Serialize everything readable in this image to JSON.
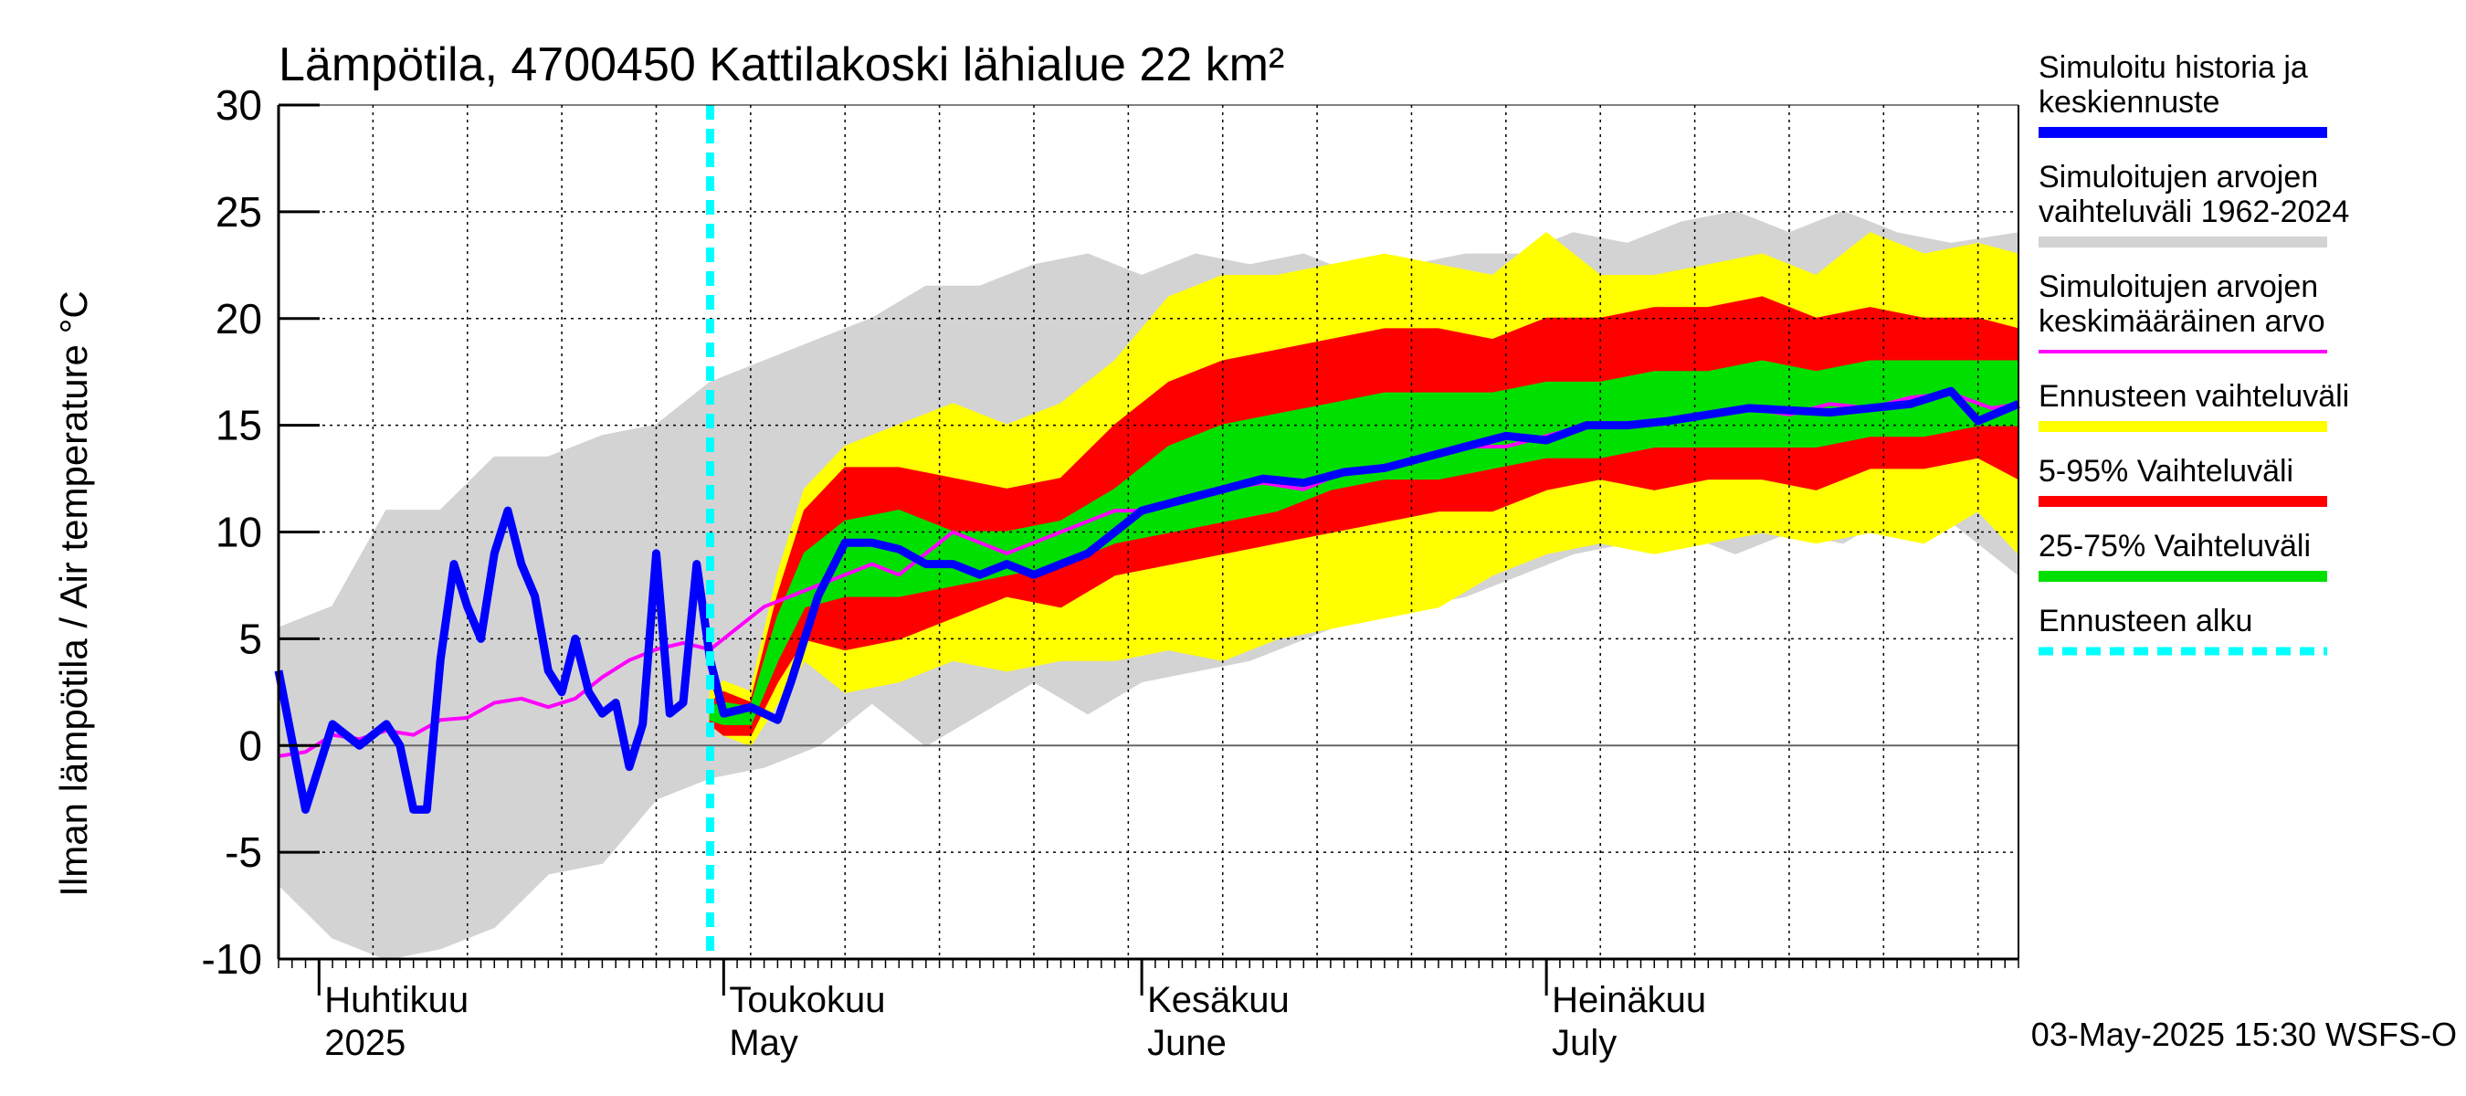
{
  "title": "Lämpötila, 4700450 Kattilakoski lähialue 22 km²",
  "y_axis_label": "Ilman lämpötila / Air temperature   °C",
  "footer": "03-May-2025 15:30 WSFS-O",
  "colors": {
    "history": "#0000ff",
    "range_all": "#d3d3d3",
    "mean": "#ff00ff",
    "forecast_range": "#ffff00",
    "p5_95": "#ff0000",
    "p25_75": "#00e000",
    "forecast_start": "#00ffff",
    "grid": "#000000"
  },
  "legend": [
    {
      "label": "Simuloitu historia ja\nkeskiennuste",
      "key": "history",
      "style": "line"
    },
    {
      "label": "Simuloitujen arvojen\nvaihteluväli 1962-2024",
      "key": "range_all",
      "style": "line"
    },
    {
      "label": "Simuloitujen arvojen\nkeskimääräinen arvo",
      "key": "mean",
      "style": "thin"
    },
    {
      "label": "Ennusteen vaihteluväli",
      "key": "forecast_range",
      "style": "line"
    },
    {
      "label": "5-95% Vaihteluväli",
      "key": "p5_95",
      "style": "line"
    },
    {
      "label": "25-75% Vaihteluväli",
      "key": "p25_75",
      "style": "line"
    },
    {
      "label": "Ennusteen alku",
      "key": "forecast_start",
      "style": "dashed"
    }
  ],
  "chart_data": {
    "type": "area",
    "title": "Lämpötila, 4700450 Kattilakoski lähialue 22 km²",
    "ylabel": "Ilman lämpötila / Air temperature   °C",
    "ylim": [
      -10,
      30
    ],
    "yticks": [
      -10,
      -5,
      0,
      5,
      10,
      15,
      20,
      25,
      30
    ],
    "xlim": [
      "2025-03-29",
      "2025-08-05"
    ],
    "month_labels": [
      {
        "date": "2025-04-01",
        "fi": "Huhtikuu",
        "en": "2025"
      },
      {
        "date": "2025-05-01",
        "fi": "Toukokuu",
        "en": "May"
      },
      {
        "date": "2025-06-01",
        "fi": "Kesäkuu",
        "en": "June"
      },
      {
        "date": "2025-07-01",
        "fi": "Heinäkuu",
        "en": "July"
      }
    ],
    "forecast_start": "2025-04-30",
    "history": {
      "dates": [
        "2025-03-29",
        "2025-03-31",
        "2025-04-02",
        "2025-04-04",
        "2025-04-06",
        "2025-04-07",
        "2025-04-08",
        "2025-04-09",
        "2025-04-10",
        "2025-04-11",
        "2025-04-12",
        "2025-04-13",
        "2025-04-14",
        "2025-04-15",
        "2025-04-16",
        "2025-04-17",
        "2025-04-18",
        "2025-04-19",
        "2025-04-20",
        "2025-04-21",
        "2025-04-22",
        "2025-04-23",
        "2025-04-24",
        "2025-04-25",
        "2025-04-26",
        "2025-04-27",
        "2025-04-28",
        "2025-04-29",
        "2025-04-30"
      ],
      "values": [
        3.5,
        -3,
        1,
        0,
        1,
        0,
        -3,
        -3,
        4,
        8.5,
        6.5,
        5,
        9,
        11,
        8.5,
        7,
        3.5,
        2.5,
        5,
        2.5,
        1.5,
        2,
        -1,
        1,
        9,
        1.5,
        2,
        8.5,
        4
      ]
    },
    "mean": {
      "dates": [
        "2025-03-29",
        "2025-03-31",
        "2025-04-02",
        "2025-04-04",
        "2025-04-06",
        "2025-04-08",
        "2025-04-10",
        "2025-04-12",
        "2025-04-14",
        "2025-04-16",
        "2025-04-18",
        "2025-04-20",
        "2025-04-22",
        "2025-04-24",
        "2025-04-26",
        "2025-04-28",
        "2025-04-30",
        "2025-05-02",
        "2025-05-04",
        "2025-05-06",
        "2025-05-08",
        "2025-05-10",
        "2025-05-12",
        "2025-05-14",
        "2025-05-16",
        "2025-05-18",
        "2025-05-20",
        "2025-05-22",
        "2025-05-24",
        "2025-05-26",
        "2025-05-28",
        "2025-05-30",
        "2025-06-01",
        "2025-06-04",
        "2025-06-07",
        "2025-06-10",
        "2025-06-13",
        "2025-06-16",
        "2025-06-19",
        "2025-06-22",
        "2025-06-25",
        "2025-06-28",
        "2025-07-01",
        "2025-07-04",
        "2025-07-07",
        "2025-07-10",
        "2025-07-13",
        "2025-07-16",
        "2025-07-19",
        "2025-07-22",
        "2025-07-25",
        "2025-07-28",
        "2025-07-31",
        "2025-08-03",
        "2025-08-05"
      ],
      "values": [
        -0.5,
        -0.3,
        0.5,
        0.3,
        0.7,
        0.5,
        1.2,
        1.3,
        2,
        2.2,
        1.8,
        2.2,
        3.2,
        4,
        4.5,
        4.8,
        4.5,
        5.5,
        6.5,
        7,
        7.5,
        8,
        8.5,
        8,
        9,
        10,
        9.5,
        9,
        9.5,
        10,
        10.5,
        11,
        11,
        11.5,
        12,
        12.3,
        12,
        12.8,
        13,
        13.5,
        14,
        14,
        14.5,
        15,
        15,
        15.2,
        15.5,
        15.8,
        15.5,
        16,
        15.8,
        16.3,
        16.5,
        15.8,
        16
      ]
    },
    "median": {
      "dates": [
        "2025-04-30",
        "2025-05-01",
        "2025-05-03",
        "2025-05-05",
        "2025-05-06",
        "2025-05-08",
        "2025-05-10",
        "2025-05-12",
        "2025-05-14",
        "2025-05-16",
        "2025-05-18",
        "2025-05-20",
        "2025-05-22",
        "2025-05-24",
        "2025-05-26",
        "2025-05-28",
        "2025-05-30",
        "2025-06-01",
        "2025-06-04",
        "2025-06-07",
        "2025-06-10",
        "2025-06-13",
        "2025-06-16",
        "2025-06-19",
        "2025-06-22",
        "2025-06-25",
        "2025-06-28",
        "2025-07-01",
        "2025-07-04",
        "2025-07-07",
        "2025-07-10",
        "2025-07-13",
        "2025-07-16",
        "2025-07-19",
        "2025-07-22",
        "2025-07-25",
        "2025-07-28",
        "2025-07-31",
        "2025-08-02",
        "2025-08-05"
      ],
      "values": [
        4,
        1.5,
        1.8,
        1.2,
        3,
        7,
        9.5,
        9.5,
        9.2,
        8.5,
        8.5,
        8,
        8.5,
        8,
        8.5,
        9,
        10,
        11,
        11.5,
        12,
        12.5,
        12.3,
        12.8,
        13,
        13.5,
        14,
        14.5,
        14.3,
        15,
        15,
        15.2,
        15.5,
        15.8,
        15.7,
        15.6,
        15.8,
        16,
        16.6,
        15.2,
        16
      ]
    },
    "range_all": {
      "dates": [
        "2025-03-29",
        "2025-04-02",
        "2025-04-06",
        "2025-04-10",
        "2025-04-14",
        "2025-04-18",
        "2025-04-22",
        "2025-04-26",
        "2025-04-30",
        "2025-05-04",
        "2025-05-08",
        "2025-05-12",
        "2025-05-16",
        "2025-05-20",
        "2025-05-24",
        "2025-05-28",
        "2025-06-01",
        "2025-06-05",
        "2025-06-09",
        "2025-06-13",
        "2025-06-17",
        "2025-06-21",
        "2025-06-25",
        "2025-06-29",
        "2025-07-03",
        "2025-07-07",
        "2025-07-11",
        "2025-07-15",
        "2025-07-19",
        "2025-07-23",
        "2025-07-27",
        "2025-07-31",
        "2025-08-05"
      ],
      "upper": [
        5.5,
        6.5,
        11,
        11,
        13.5,
        13.5,
        14.5,
        15,
        17,
        18,
        19,
        20,
        21.5,
        21.5,
        22.5,
        23,
        22,
        23,
        22.5,
        23,
        22,
        22.5,
        23,
        23,
        24,
        23.5,
        24.5,
        25,
        24,
        25,
        24,
        23.5,
        24
      ],
      "lower": [
        -6.5,
        -9,
        -10,
        -9.5,
        -8.5,
        -6,
        -5.5,
        -2.5,
        -1.5,
        -1,
        0,
        2,
        0,
        1.5,
        3,
        1.5,
        3,
        3.5,
        4,
        5,
        6,
        6.5,
        7,
        8,
        9,
        9.5,
        10,
        9,
        10,
        9.5,
        11,
        10.5,
        8
      ]
    },
    "forecast_range": {
      "dates": [
        "2025-04-30",
        "2025-05-01",
        "2025-05-03",
        "2025-05-05",
        "2025-05-07",
        "2025-05-10",
        "2025-05-14",
        "2025-05-18",
        "2025-05-22",
        "2025-05-26",
        "2025-05-30",
        "2025-06-03",
        "2025-06-07",
        "2025-06-11",
        "2025-06-15",
        "2025-06-19",
        "2025-06-23",
        "2025-06-27",
        "2025-07-01",
        "2025-07-05",
        "2025-07-09",
        "2025-07-13",
        "2025-07-17",
        "2025-07-21",
        "2025-07-25",
        "2025-07-29",
        "2025-08-02",
        "2025-08-05"
      ],
      "upper": [
        2.5,
        3,
        2.5,
        8,
        12,
        14,
        15,
        16,
        15,
        16,
        18,
        21,
        22,
        22,
        22.5,
        23,
        22.5,
        22,
        24,
        22,
        22,
        22.5,
        23,
        22,
        24,
        23,
        23.5,
        23
      ],
      "lower": [
        1,
        0.5,
        0,
        2,
        4,
        2.5,
        3,
        4,
        3.5,
        4,
        4,
        4.5,
        4,
        5,
        5.5,
        6,
        6.5,
        8,
        9,
        9.5,
        9,
        9.5,
        10,
        9.5,
        10,
        9.5,
        11,
        9
      ]
    },
    "p5_95": {
      "dates": [
        "2025-04-30",
        "2025-05-01",
        "2025-05-03",
        "2025-05-05",
        "2025-05-07",
        "2025-05-10",
        "2025-05-14",
        "2025-05-18",
        "2025-05-22",
        "2025-05-26",
        "2025-05-30",
        "2025-06-03",
        "2025-06-07",
        "2025-06-11",
        "2025-06-15",
        "2025-06-19",
        "2025-06-23",
        "2025-06-27",
        "2025-07-01",
        "2025-07-05",
        "2025-07-09",
        "2025-07-13",
        "2025-07-17",
        "2025-07-21",
        "2025-07-25",
        "2025-07-29",
        "2025-08-02",
        "2025-08-05"
      ],
      "upper": [
        2,
        2.5,
        2,
        7,
        11,
        13,
        13,
        12.5,
        12,
        12.5,
        15,
        17,
        18,
        18.5,
        19,
        19.5,
        19.5,
        19,
        20,
        20,
        20.5,
        20.5,
        21,
        20,
        20.5,
        20,
        20,
        19.5
      ],
      "lower": [
        1,
        0.5,
        0.5,
        3,
        5,
        4.5,
        5,
        6,
        7,
        6.5,
        8,
        8.5,
        9,
        9.5,
        10,
        10.5,
        11,
        11,
        12,
        12.5,
        12,
        12.5,
        12.5,
        12,
        13,
        13,
        13.5,
        12.5
      ]
    },
    "p25_75": {
      "dates": [
        "2025-04-30",
        "2025-05-01",
        "2025-05-03",
        "2025-05-05",
        "2025-05-07",
        "2025-05-10",
        "2025-05-14",
        "2025-05-18",
        "2025-05-22",
        "2025-05-26",
        "2025-05-30",
        "2025-06-03",
        "2025-06-07",
        "2025-06-11",
        "2025-06-15",
        "2025-06-19",
        "2025-06-23",
        "2025-06-27",
        "2025-07-01",
        "2025-07-05",
        "2025-07-09",
        "2025-07-13",
        "2025-07-17",
        "2025-07-21",
        "2025-07-25",
        "2025-07-29",
        "2025-08-02",
        "2025-08-05"
      ],
      "upper": [
        1.8,
        2,
        1.8,
        6,
        9,
        10.5,
        11,
        10,
        10,
        10.5,
        12,
        14,
        15,
        15.5,
        16,
        16.5,
        16.5,
        16.5,
        17,
        17,
        17.5,
        17.5,
        18,
        17.5,
        18,
        18,
        18,
        18
      ],
      "lower": [
        1.2,
        1,
        1,
        4,
        6.5,
        7,
        7,
        7.5,
        8,
        8.5,
        9.5,
        10,
        10.5,
        11,
        12,
        12.5,
        12.5,
        13,
        13.5,
        13.5,
        14,
        14,
        14,
        14,
        14.5,
        14.5,
        15,
        15
      ]
    }
  }
}
